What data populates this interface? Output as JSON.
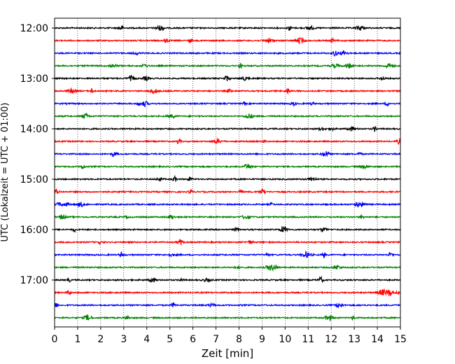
{
  "chart_data": {
    "type": "line",
    "title": "",
    "xlabel": "Zeit  [min]",
    "ylabel": "UTC (Lokalzeit = UTC + 01:00)",
    "xlim": [
      0,
      15
    ],
    "x_ticks": [
      "0",
      "1",
      "2",
      "3",
      "4",
      "5",
      "6",
      "7",
      "8",
      "9",
      "10",
      "11",
      "12",
      "13",
      "14",
      "15"
    ],
    "y_ticks": [
      "12:00",
      "13:00",
      "14:00",
      "15:00",
      "16:00",
      "17:00"
    ],
    "trace_interval_minutes": 15,
    "first_trace": "12:00",
    "last_trace": "17:45",
    "trace_colors": [
      "#000000",
      "#ff0000",
      "#0000ff",
      "#008000"
    ],
    "grid": "vertical dotted lines at every minute",
    "legend": "none"
  }
}
